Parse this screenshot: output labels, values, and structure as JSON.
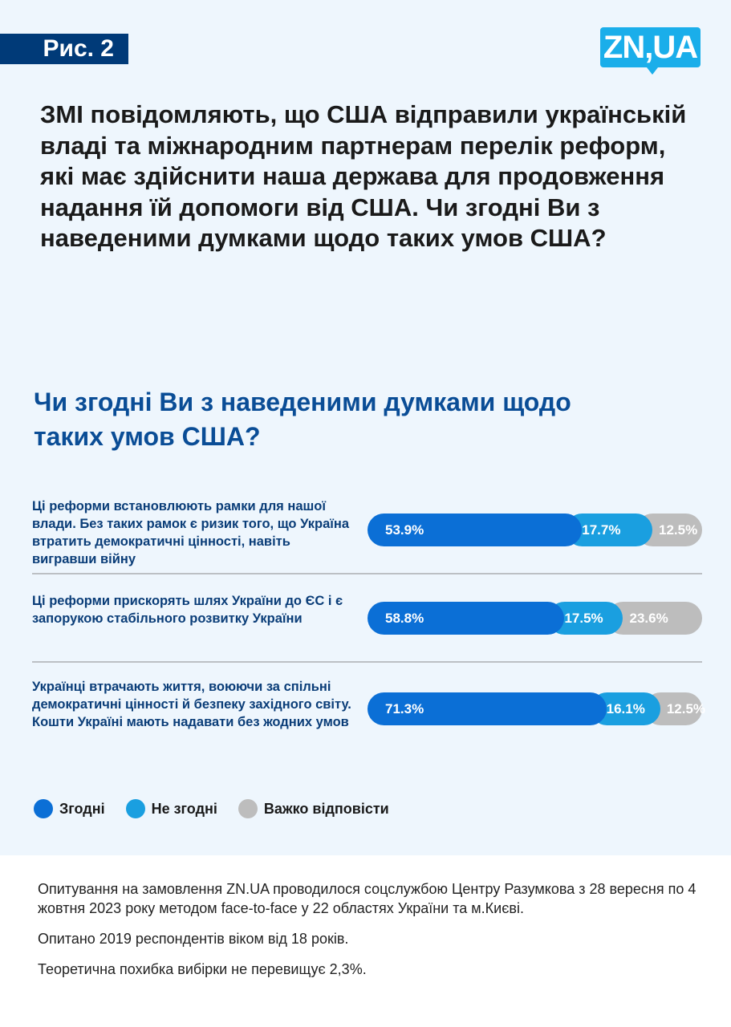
{
  "header": {
    "figure_label": "Рис. 2",
    "logo": "ZN,UA"
  },
  "question": "ЗМІ повідомляють, що США відправили українській владі та міжнародним партнерам перелік реформ, які має здійснити наша держава для продовження надання їй допомоги від США. Чи згодні Ви з наведеними думками щодо таких умов США?",
  "chart_data": {
    "type": "bar",
    "orientation": "horizontal-stacked",
    "title": "Чи згодні Ви з наведеними думками щодо таких умов США?",
    "categories": [
      "Ці реформи встановлюють рамки для нашої влади. Без таких рамок є ризик того, що Україна втратить демократичні цінності, навіть вигравши війну",
      "Ці реформи прискорять шлях України до ЄС і є запорукою стабільного розвитку України",
      "Українці втрачають життя, воюючи за спільні демократичні цінності й безпеку західного світу. Кошти Україні мають надавати без жодних умов"
    ],
    "series": [
      {
        "name": "Згодні",
        "color": "#0b6fd6",
        "values": [
          53.9,
          58.8,
          71.3
        ],
        "labels": [
          "53.9%",
          "58.8%",
          "71.3%"
        ]
      },
      {
        "name": "Не згодні",
        "color": "#1a9fe0",
        "values": [
          17.7,
          17.5,
          16.1
        ],
        "labels": [
          "17.7%",
          "17.5%",
          "16.1%"
        ]
      },
      {
        "name": "Важко відповісти",
        "color": "#bdbdbd",
        "values": [
          12.5,
          23.6,
          12.5
        ],
        "labels": [
          "12.5%",
          "23.6%",
          "12.5%"
        ]
      }
    ],
    "legend": "bottom-left"
  },
  "footer": [
    "Опитування на замовлення ZN.UA проводилося соцслужбою Центру Разумкова з 28 вересня по 4 жовтня 2023 року методом face-to-face у 22 областях України та м.Києві.",
    "Опитано 2019 респондентів віком від 18 років.",
    "Теоретична похибка вибірки не перевищує 2,3%."
  ]
}
